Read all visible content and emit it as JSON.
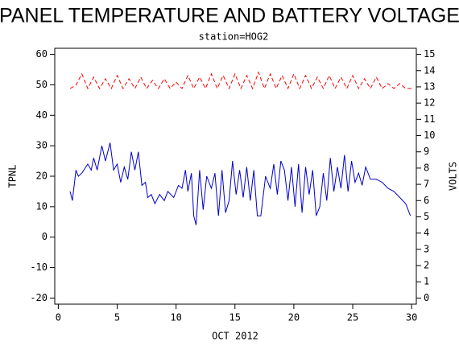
{
  "chart_data": {
    "type": "line",
    "title": "PANEL TEMPERATURE AND BATTERY VOLTAGE",
    "subtitle": "station=HOG2",
    "x_label": "OCT 2012",
    "y_label": "TPNL",
    "y2_label": "VOLTS",
    "xlim": [
      -0.3,
      30.4
    ],
    "xticks": [
      0,
      5,
      10,
      15,
      20,
      25,
      30
    ],
    "ylim": [
      -22,
      62
    ],
    "yticks": [
      -20,
      -10,
      0,
      10,
      20,
      30,
      40,
      50,
      60
    ],
    "y2lim": [
      -0.375,
      15.375
    ],
    "y2ticks": [
      0,
      1,
      2,
      3,
      4,
      5,
      6,
      7,
      8,
      9,
      10,
      11,
      12,
      13,
      14,
      15
    ],
    "series": [
      {
        "name": "TPNL",
        "color": "#0000cc",
        "dashed": false,
        "x": [
          1.0,
          1.2,
          1.5,
          1.7,
          2.0,
          2.5,
          2.8,
          3.0,
          3.3,
          3.7,
          4.0,
          4.4,
          4.7,
          5.0,
          5.3,
          5.6,
          5.9,
          6.2,
          6.5,
          6.8,
          7.1,
          7.4,
          7.6,
          7.9,
          8.2,
          8.6,
          9.0,
          9.3,
          9.8,
          10.2,
          10.5,
          10.8,
          11.0,
          11.3,
          11.5,
          11.7,
          12.0,
          12.3,
          12.6,
          13.0,
          13.3,
          13.6,
          13.9,
          14.2,
          14.5,
          14.8,
          15.1,
          15.4,
          15.7,
          16.0,
          16.3,
          16.6,
          16.9,
          17.2,
          17.6,
          18.0,
          18.3,
          18.6,
          18.9,
          19.2,
          19.5,
          19.8,
          20.1,
          20.4,
          20.7,
          21.0,
          21.3,
          21.6,
          21.9,
          22.2,
          22.5,
          22.8,
          23.1,
          23.4,
          23.7,
          24.0,
          24.3,
          24.6,
          24.9,
          25.2,
          25.5,
          25.8,
          26.1,
          26.5,
          27.0,
          27.5,
          28.0,
          28.5,
          29.0,
          29.5,
          29.9
        ],
        "values": [
          15,
          12,
          22,
          20,
          21,
          24,
          22,
          26,
          22,
          30,
          25,
          31,
          22,
          24,
          18,
          23,
          19,
          28,
          22,
          28,
          17,
          18,
          13,
          14,
          11,
          14,
          12,
          15,
          13,
          17,
          16,
          22,
          15,
          21,
          7,
          4,
          22,
          9,
          20,
          16,
          21,
          7,
          22,
          8,
          12,
          25,
          14,
          22,
          13,
          23,
          12,
          22,
          7,
          7,
          20,
          16,
          24,
          14,
          25,
          22,
          12,
          23,
          10,
          24,
          8,
          23,
          14,
          22,
          7,
          10,
          21,
          12,
          26,
          15,
          23,
          16,
          27,
          15,
          25,
          18,
          21,
          17,
          23,
          19,
          19,
          18,
          16,
          15,
          13,
          11,
          7
        ]
      },
      {
        "name": "VOLTS",
        "color": "#ff0000",
        "dashed": true,
        "axis": "y2",
        "x": [
          1.0,
          1.5,
          2.0,
          2.5,
          3.0,
          3.5,
          4.0,
          4.5,
          5.0,
          5.5,
          6.0,
          6.5,
          7.0,
          7.5,
          8.0,
          8.5,
          9.0,
          9.5,
          10.0,
          10.5,
          11.0,
          11.5,
          12.0,
          12.5,
          13.0,
          13.5,
          14.0,
          14.5,
          15.0,
          15.5,
          16.0,
          16.5,
          17.0,
          17.5,
          18.0,
          18.5,
          19.0,
          19.5,
          20.0,
          20.5,
          21.0,
          21.5,
          22.0,
          22.5,
          23.0,
          23.5,
          24.0,
          24.5,
          25.0,
          25.5,
          26.0,
          26.5,
          27.0,
          27.5,
          28.0,
          28.5,
          29.0,
          29.5,
          30.0
        ],
        "values": [
          12.9,
          13.1,
          13.8,
          12.9,
          13.6,
          12.9,
          13.5,
          12.9,
          13.7,
          12.9,
          13.5,
          12.9,
          13.6,
          12.9,
          13.4,
          12.9,
          13.5,
          12.9,
          13.3,
          12.9,
          13.7,
          12.9,
          13.6,
          12.9,
          13.8,
          12.9,
          13.7,
          12.9,
          13.8,
          12.9,
          13.7,
          12.9,
          13.9,
          12.9,
          13.8,
          12.9,
          13.7,
          12.9,
          13.8,
          12.9,
          13.7,
          12.9,
          13.6,
          12.9,
          13.7,
          12.9,
          13.6,
          12.9,
          13.7,
          12.9,
          13.5,
          12.9,
          13.6,
          12.9,
          13.2,
          12.9,
          13.2,
          12.9,
          12.9
        ]
      }
    ]
  }
}
